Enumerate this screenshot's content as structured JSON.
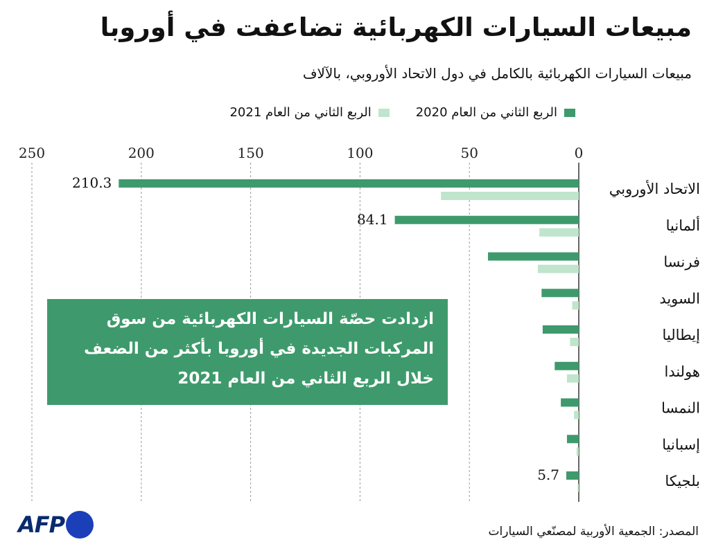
{
  "chart_data": {
    "type": "bar",
    "orientation": "horizontal",
    "title": "مبيعات السيارات الكهربائية تضاعفت في أوروبا",
    "subtitle": "مبيعات السيارات الكهربائية بالكامل في دول الاتحاد الأوروبي، بالآلاف",
    "categories": [
      "الاتحاد الأوروبي",
      "ألمانيا",
      "فرنسا",
      "السويد",
      "إيطاليا",
      "هولندا",
      "النمسا",
      "إسبانيا",
      "بلجيكا"
    ],
    "series": [
      {
        "name": "الربع الثاني من العام 2020",
        "color": "#3e9a6c",
        "values": [
          210.3,
          84.1,
          41.5,
          17,
          16.5,
          11,
          8.2,
          5.4,
          5.7
        ],
        "value_labels": [
          "210.3",
          "84.1",
          null,
          null,
          null,
          null,
          null,
          null,
          "5.7"
        ]
      },
      {
        "name": "الربع الثاني من العام 2021",
        "color": "#bfe5cc",
        "values": [
          63,
          18,
          18.7,
          3,
          4,
          5.4,
          2.2,
          1,
          0.5
        ]
      }
    ],
    "xlim": [
      0,
      250
    ],
    "xticks": [
      0,
      50,
      100,
      150,
      200,
      250
    ],
    "x_reversed": true,
    "grid": true,
    "annotation": [
      "ازدادت حصّة السيارات الكهربائية من سوق",
      "المركبات الجديدة في أوروبا بأكثر من الضعف",
      "خلال الربع الثاني من العام 2021"
    ],
    "source": "المصدر: الجمعية الأوربية لمصنّعي السيارات",
    "logo": "AFP"
  }
}
